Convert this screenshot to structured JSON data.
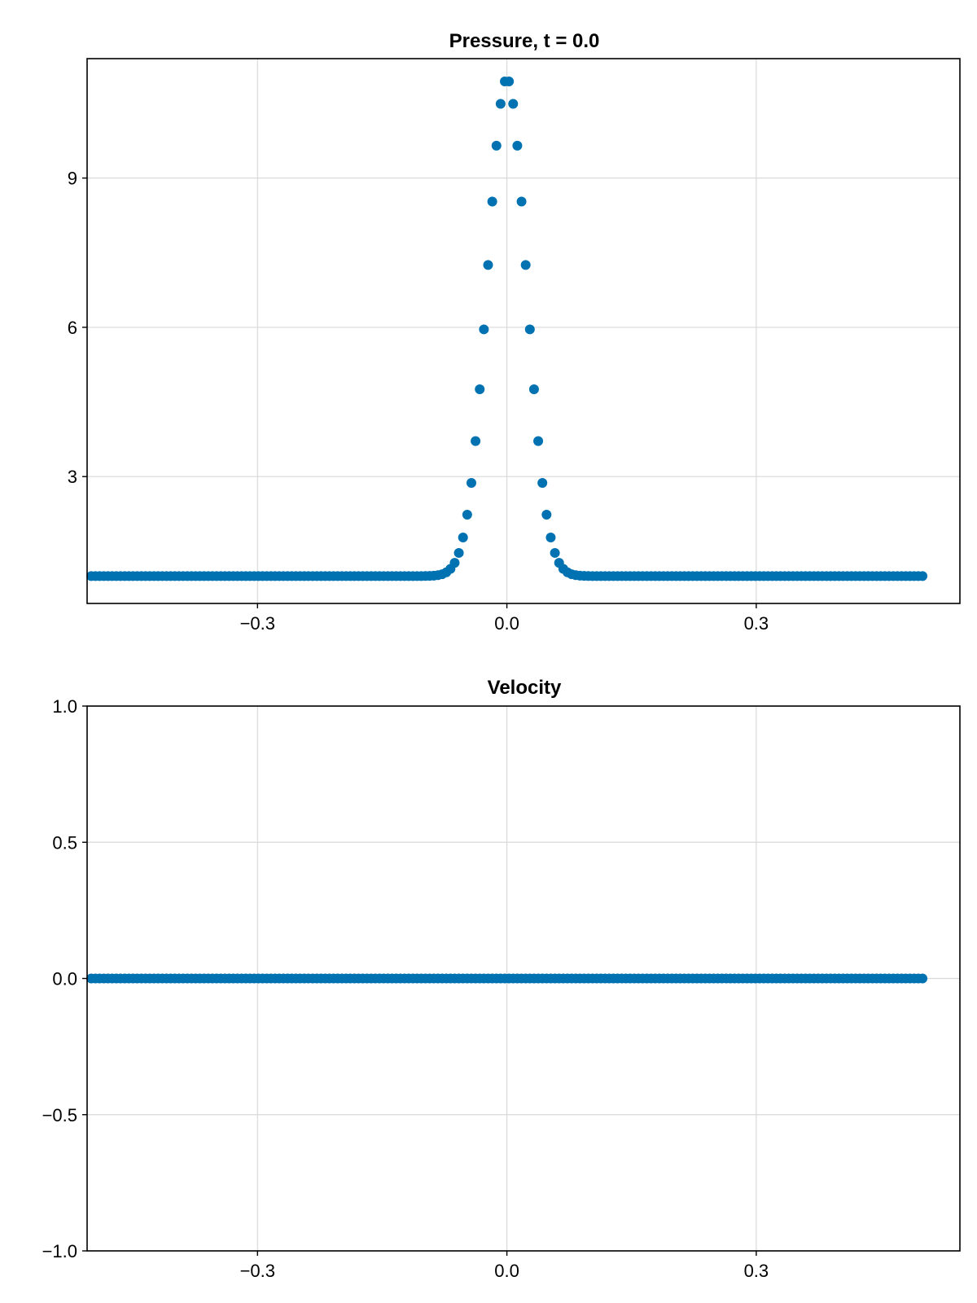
{
  "chart_data": [
    {
      "type": "scatter",
      "title": "Pressure, t = 0.0",
      "xlabel": "",
      "ylabel": "",
      "xlim": [
        -0.505,
        0.545
      ],
      "ylim": [
        0.45,
        11.4
      ],
      "xticks": [
        -0.3,
        0.0,
        0.3
      ],
      "xtick_labels": [
        "−0.3",
        "0.0",
        "0.3"
      ],
      "yticks": [
        3,
        6,
        9
      ],
      "ytick_labels": [
        "3",
        "6",
        "9"
      ],
      "grid": true,
      "color": "#0072b2",
      "series": [
        {
          "x_start": -0.5,
          "x_end": 0.5,
          "count": 200,
          "baseline": 1.0,
          "peak_amplitude": 10.0,
          "peak_width": 0.033
        }
      ]
    },
    {
      "type": "scatter",
      "title": "Velocity",
      "xlabel": "",
      "ylabel": "",
      "xlim": [
        -0.505,
        0.545
      ],
      "ylim": [
        -1.0,
        1.0
      ],
      "xticks": [
        -0.3,
        0.0,
        0.3
      ],
      "xtick_labels": [
        "−0.3",
        "0.0",
        "0.3"
      ],
      "yticks": [
        -1.0,
        -0.5,
        0.0,
        0.5,
        1.0
      ],
      "ytick_labels": [
        "−1.0",
        "−0.5",
        "0.0",
        "0.5",
        "1.0"
      ],
      "grid": true,
      "color": "#0072b2",
      "series": [
        {
          "x_start": -0.5,
          "x_end": 0.5,
          "count": 200,
          "constant_value": 0.0
        }
      ]
    }
  ]
}
